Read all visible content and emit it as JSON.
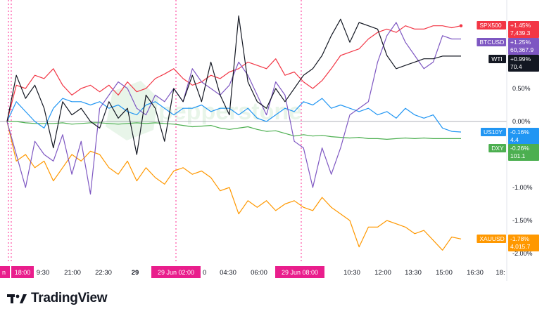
{
  "chart_data": {
    "type": "line",
    "watermark": "pepperstone",
    "y_axis": {
      "unit": "%",
      "ticks": [
        "0.50%",
        "0.00%",
        "-1.00%",
        "-1.50%",
        "-2.00%"
      ],
      "values": [
        0.5,
        0.0,
        -1.0,
        -1.5,
        -2.0
      ]
    },
    "x_axis": {
      "ticks": [
        "9:30",
        "21:00",
        "22:30",
        "29",
        "04:30",
        "06:00",
        "10:30",
        "12:00",
        "13:30",
        "15:00",
        "16:30",
        "18:"
      ],
      "session_labels": [
        "18:00",
        "29 Jun  02:00",
        "29 Jun  08:00"
      ],
      "session_label_prefix": "n",
      "session_label_suffix": "0"
    },
    "series": [
      {
        "name": "SPX500",
        "color": "#f23645",
        "change": "+1.45%",
        "value": "7,439.3",
        "values": [
          0.0,
          0.55,
          0.5,
          0.7,
          0.65,
          0.8,
          0.55,
          0.4,
          0.5,
          0.55,
          0.45,
          0.55,
          0.4,
          0.6,
          0.45,
          0.5,
          0.65,
          0.72,
          0.8,
          0.65,
          0.55,
          0.6,
          0.7,
          0.65,
          0.75,
          0.8,
          0.9,
          0.85,
          0.8,
          0.95,
          0.7,
          0.75,
          0.6,
          0.5,
          0.62,
          0.8,
          1.0,
          1.05,
          1.1,
          1.25,
          1.35,
          1.4,
          1.35,
          1.45,
          1.4,
          1.4,
          1.45,
          1.45,
          1.42,
          1.45
        ]
      },
      {
        "name": "BTCUSD",
        "color": "#7e57c2",
        "change": "+1.25%",
        "value": "60,367.9",
        "values": [
          0.0,
          -0.5,
          -1.0,
          -0.3,
          -0.5,
          -0.6,
          -0.2,
          -0.8,
          -0.3,
          -1.1,
          0.2,
          0.4,
          0.6,
          0.5,
          0.2,
          0.1,
          0.4,
          0.3,
          0.5,
          0.3,
          0.8,
          0.6,
          0.5,
          0.4,
          0.55,
          0.9,
          0.7,
          0.4,
          0.1,
          0.6,
          0.4,
          -0.3,
          -0.4,
          -1.0,
          -0.4,
          -0.8,
          -0.4,
          0.1,
          0.2,
          0.3,
          0.9,
          1.3,
          1.5,
          1.2,
          1.0,
          0.8,
          0.9,
          1.3,
          1.25,
          1.25
        ]
      },
      {
        "name": "WTI",
        "color": "#131722",
        "change": "+0.99%",
        "value": "70.4",
        "values": [
          0.0,
          0.7,
          0.35,
          0.55,
          0.2,
          -0.4,
          0.3,
          0.1,
          0.2,
          0.0,
          -0.1,
          0.3,
          0.05,
          0.2,
          -0.5,
          0.4,
          0.2,
          -0.3,
          0.5,
          0.3,
          0.7,
          0.3,
          0.9,
          0.4,
          0.1,
          1.6,
          0.6,
          0.3,
          0.2,
          0.5,
          0.3,
          0.5,
          0.7,
          0.8,
          1.0,
          1.3,
          1.55,
          1.2,
          1.5,
          1.45,
          1.4,
          1.0,
          0.8,
          0.85,
          0.9,
          0.95,
          0.95,
          0.99,
          0.99,
          0.99
        ]
      },
      {
        "name": "US10Y",
        "color": "#2196f3",
        "change": "-0.16%",
        "value": "4.4",
        "values": [
          0.0,
          0.3,
          0.15,
          0.0,
          -0.1,
          0.2,
          0.35,
          0.3,
          0.3,
          0.25,
          0.3,
          0.2,
          0.25,
          0.15,
          0.1,
          0.25,
          0.3,
          0.2,
          0.1,
          0.2,
          0.2,
          0.25,
          0.15,
          0.2,
          0.2,
          0.1,
          0.2,
          0.05,
          0.0,
          0.1,
          0.2,
          0.15,
          0.3,
          0.25,
          0.35,
          0.2,
          0.25,
          0.2,
          0.15,
          0.2,
          0.1,
          0.15,
          0.05,
          0.2,
          0.1,
          0.05,
          0.1,
          -0.1,
          -0.15,
          -0.16
        ]
      },
      {
        "name": "DXY",
        "color": "#4caf50",
        "change": "-0.26%",
        "value": "101.1",
        "values": [
          0.0,
          0.0,
          -0.02,
          -0.03,
          -0.03,
          -0.03,
          -0.02,
          -0.04,
          -0.03,
          -0.02,
          -0.02,
          -0.03,
          -0.04,
          -0.03,
          -0.02,
          -0.03,
          -0.02,
          -0.03,
          -0.04,
          -0.06,
          -0.08,
          -0.07,
          -0.06,
          -0.1,
          -0.12,
          -0.1,
          -0.08,
          -0.12,
          -0.15,
          -0.14,
          -0.18,
          -0.22,
          -0.2,
          -0.22,
          -0.21,
          -0.23,
          -0.24,
          -0.25,
          -0.24,
          -0.26,
          -0.26,
          -0.27,
          -0.26,
          -0.25,
          -0.26,
          -0.25,
          -0.26,
          -0.26,
          -0.26,
          -0.26
        ]
      },
      {
        "name": "XAUUSD",
        "color": "#ff9800",
        "change": "-1.78%",
        "value": "4,015.7",
        "values": [
          0.0,
          -0.6,
          -0.5,
          -0.7,
          -0.6,
          -0.9,
          -0.7,
          -0.5,
          -0.6,
          -0.45,
          -0.5,
          -0.7,
          -0.8,
          -0.6,
          -0.9,
          -0.7,
          -0.85,
          -0.95,
          -0.75,
          -0.7,
          -0.8,
          -0.75,
          -0.85,
          -1.05,
          -1.0,
          -1.4,
          -1.2,
          -1.3,
          -1.2,
          -1.35,
          -1.25,
          -1.2,
          -1.3,
          -1.35,
          -1.15,
          -1.3,
          -1.4,
          -1.5,
          -1.9,
          -1.6,
          -1.6,
          -1.5,
          -1.55,
          -1.6,
          -1.7,
          -1.65,
          -1.8,
          -1.95,
          -1.75,
          -1.78
        ]
      }
    ]
  },
  "brand": {
    "name": "TradingView"
  },
  "colors": {
    "session_line": "#ff2e93",
    "session_label_bg": "#e91e8c",
    "grid": "#e0e3eb"
  }
}
